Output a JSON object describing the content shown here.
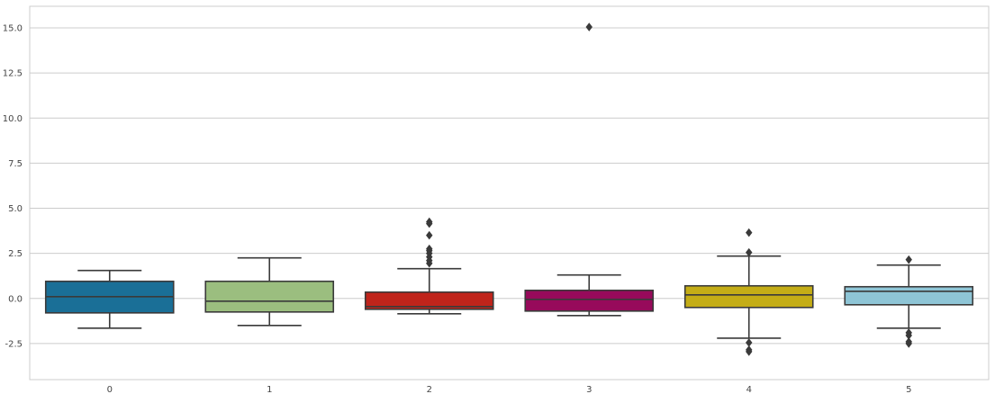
{
  "chart_data": {
    "type": "box",
    "title": "",
    "xlabel": "",
    "ylabel": "",
    "ylim": [
      -4.5,
      16.2
    ],
    "grid": "horizontal",
    "yticks": [
      -2.5,
      0.0,
      2.5,
      5.0,
      7.5,
      10.0,
      12.5,
      15.0
    ],
    "ytick_labels": [
      "-2.5",
      "0.0",
      "2.5",
      "5.0",
      "7.5",
      "10.0",
      "12.5",
      "15.0"
    ],
    "categories": [
      "0",
      "1",
      "2",
      "3",
      "4",
      "5"
    ],
    "colors": [
      "#1a6f97",
      "#9bbe7f",
      "#c0241b",
      "#970a5b",
      "#c4ad16",
      "#8ec5d6"
    ],
    "line_color": "#3a3a3a",
    "grid_color": "#cccccc",
    "boxes": [
      {
        "category": "0",
        "whisker_low": -1.65,
        "q1": -0.8,
        "median": 0.1,
        "q3": 0.95,
        "whisker_high": 1.55,
        "outliers": []
      },
      {
        "category": "1",
        "whisker_low": -1.5,
        "q1": -0.75,
        "median": -0.15,
        "q3": 0.95,
        "whisker_high": 2.25,
        "outliers": []
      },
      {
        "category": "2",
        "whisker_low": -0.85,
        "q1": -0.6,
        "median": -0.45,
        "q3": 0.35,
        "whisker_high": 1.65,
        "outliers": [
          1.95,
          2.1,
          2.3,
          2.5,
          2.65,
          2.75,
          3.5,
          4.15,
          4.25
        ]
      },
      {
        "category": "3",
        "whisker_low": -0.95,
        "q1": -0.7,
        "median": -0.05,
        "q3": 0.45,
        "whisker_high": 1.3,
        "outliers": [
          15.05
        ]
      },
      {
        "category": "4",
        "whisker_low": -2.2,
        "q1": -0.5,
        "median": 0.2,
        "q3": 0.7,
        "whisker_high": 2.35,
        "outliers": [
          2.55,
          3.65,
          -2.45,
          -2.85,
          -2.95
        ]
      },
      {
        "category": "5",
        "whisker_low": -1.65,
        "q1": -0.35,
        "median": 0.4,
        "q3": 0.65,
        "whisker_high": 1.85,
        "outliers": [
          2.15,
          -1.9,
          -2.05,
          -2.4,
          -2.5
        ]
      }
    ]
  }
}
